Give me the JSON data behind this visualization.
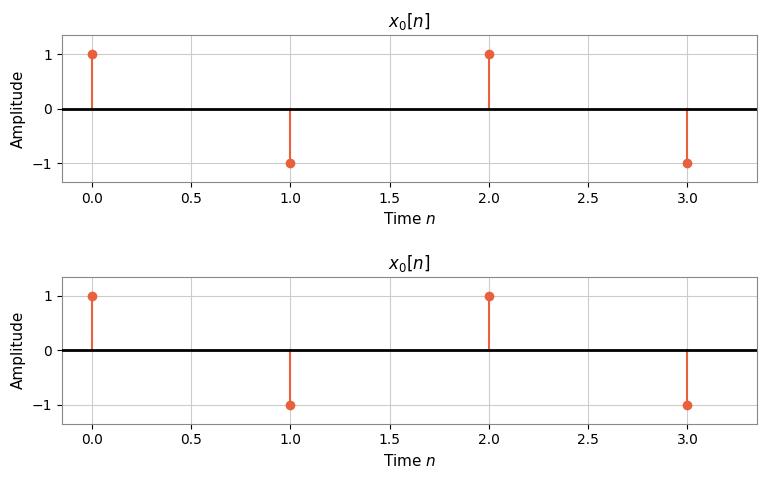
{
  "title": "$x_0[n]$",
  "xlabel": "Time $n$",
  "ylabel": "Amplitude",
  "n_values": [
    0,
    1,
    2,
    3
  ],
  "x_values": [
    1,
    -1,
    1,
    -1
  ],
  "stem_color": "#E8603C",
  "marker_color": "#E8603C",
  "marker_size": 7,
  "line_width": 1.5,
  "baseline_color": "black",
  "baseline_linewidth": 2.0,
  "xlim": [
    -0.15,
    3.35
  ],
  "ylim": [
    -1.35,
    1.35
  ],
  "yticks": [
    -1,
    0,
    1
  ],
  "xticks": [
    0.0,
    0.5,
    1.0,
    1.5,
    2.0,
    2.5,
    3.0
  ],
  "grid_color": "#cccccc",
  "bg_color": "#ffffff",
  "fig_bg_color": "#ffffff",
  "title_fontsize": 12,
  "label_fontsize": 11
}
